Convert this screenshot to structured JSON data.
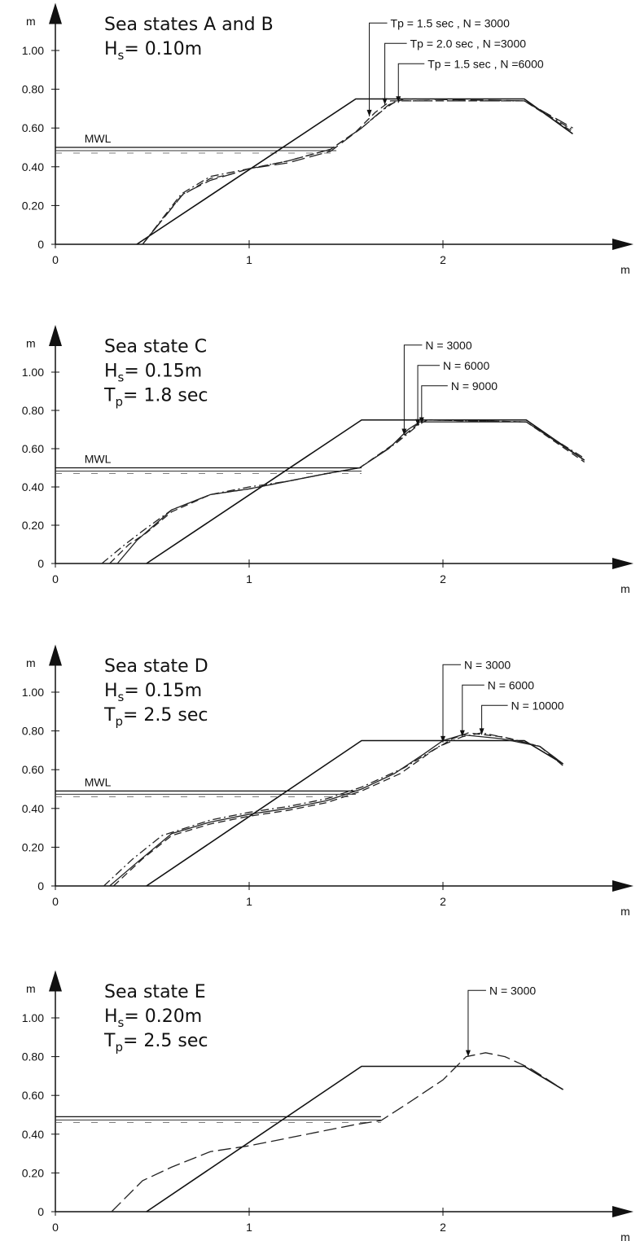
{
  "chart_data": [
    {
      "type": "line",
      "title": [
        "Sea states A and B",
        "H|s|= 0.10m"
      ],
      "xlabel": "m",
      "ylabel": "m",
      "xlim": [
        0,
        2.9
      ],
      "ylim": [
        0,
        1.08
      ],
      "xticks": [
        "0",
        "1",
        "2"
      ],
      "yticks": [
        "0",
        "0.20",
        "0.40",
        "0.60",
        "0.80",
        "1.00"
      ],
      "mwl_label": "MWL",
      "mwl": {
        "y": 0.5,
        "x_end": 1.45
      },
      "original_profile": [
        [
          0.42,
          0
        ],
        [
          1.55,
          0.75
        ],
        [
          2.42,
          0.75
        ],
        [
          2.67,
          0.57
        ]
      ],
      "series": [
        {
          "name": "Tp = 1.5 sec , N = 3000",
          "style": "dashed",
          "points": [
            [
              0.45,
              0
            ],
            [
              0.65,
              0.25
            ],
            [
              0.8,
              0.34
            ],
            [
              0.9,
              0.36
            ],
            [
              1.0,
              0.39
            ],
            [
              1.2,
              0.43
            ],
            [
              1.42,
              0.49
            ],
            [
              1.55,
              0.58
            ],
            [
              1.65,
              0.68
            ],
            [
              1.73,
              0.74
            ],
            [
              2.42,
              0.74
            ],
            [
              2.67,
              0.58
            ]
          ]
        },
        {
          "name": "Tp = 2.0 sec , N =3000",
          "style": "dashdot",
          "points": [
            [
              0.45,
              0
            ],
            [
              0.65,
              0.26
            ],
            [
              0.8,
              0.35
            ],
            [
              0.9,
              0.37
            ],
            [
              1.0,
              0.39
            ],
            [
              1.2,
              0.43
            ],
            [
              1.42,
              0.49
            ],
            [
              1.58,
              0.6
            ],
            [
              1.7,
              0.7
            ],
            [
              1.76,
              0.74
            ],
            [
              2.42,
              0.74
            ],
            [
              2.67,
              0.59
            ]
          ]
        },
        {
          "name": "Tp = 1.5 sec , N =6000",
          "style": "longdash",
          "points": [
            [
              0.45,
              0
            ],
            [
              0.66,
              0.26
            ],
            [
              0.8,
              0.33
            ],
            [
              0.9,
              0.36
            ],
            [
              1.0,
              0.39
            ],
            [
              1.2,
              0.42
            ],
            [
              1.42,
              0.48
            ],
            [
              1.58,
              0.6
            ],
            [
              1.72,
              0.72
            ],
            [
              1.8,
              0.75
            ],
            [
              2.42,
              0.74
            ],
            [
              2.67,
              0.6
            ]
          ]
        }
      ],
      "annotations": [
        {
          "text": "Tp = 1.5 sec , N = 3000",
          "x": 1.62,
          "y": 0.66
        },
        {
          "text": "Tp = 2.0 sec , N =3000",
          "x": 1.7,
          "y": 0.72
        },
        {
          "text": "Tp = 1.5 sec , N =6000",
          "x": 1.77,
          "y": 0.73
        }
      ]
    },
    {
      "type": "line",
      "title": [
        "Sea state C",
        "H|s|= 0.15m",
        "T|p|= 1.8 sec"
      ],
      "xlabel": "m",
      "ylabel": "m",
      "xlim": [
        0,
        2.9
      ],
      "ylim": [
        0,
        1.08
      ],
      "xticks": [
        "0",
        "1",
        "2"
      ],
      "yticks": [
        "0",
        "0.20",
        "0.40",
        "0.60",
        "0.80",
        "1.00"
      ],
      "mwl_label": "MWL",
      "mwl": {
        "y": 0.5,
        "x_end": 1.58
      },
      "original_profile": [
        [
          0.47,
          0
        ],
        [
          1.58,
          0.75
        ],
        [
          2.43,
          0.75
        ],
        [
          2.73,
          0.54
        ]
      ],
      "series": [
        {
          "name": "N = 3000",
          "style": "solid",
          "points": [
            [
              0.32,
              0
            ],
            [
              0.42,
              0.12
            ],
            [
              0.6,
              0.28
            ],
            [
              0.8,
              0.36
            ],
            [
              1.0,
              0.39
            ],
            [
              1.2,
              0.43
            ],
            [
              1.4,
              0.47
            ],
            [
              1.57,
              0.5
            ],
            [
              1.72,
              0.6
            ],
            [
              1.82,
              0.7
            ],
            [
              1.88,
              0.74
            ],
            [
              2.43,
              0.74
            ],
            [
              2.73,
              0.54
            ]
          ]
        },
        {
          "name": "N = 6000",
          "style": "dashed",
          "points": [
            [
              0.28,
              0
            ],
            [
              0.38,
              0.1
            ],
            [
              0.47,
              0.16
            ],
            [
              0.6,
              0.27
            ],
            [
              0.8,
              0.36
            ],
            [
              1.0,
              0.39
            ],
            [
              1.2,
              0.43
            ],
            [
              1.4,
              0.47
            ],
            [
              1.57,
              0.5
            ],
            [
              1.74,
              0.62
            ],
            [
              1.86,
              0.72
            ],
            [
              1.9,
              0.75
            ],
            [
              2.43,
              0.74
            ],
            [
              2.73,
              0.53
            ]
          ]
        },
        {
          "name": "N = 9000",
          "style": "dashdot",
          "points": [
            [
              0.24,
              0
            ],
            [
              0.36,
              0.1
            ],
            [
              0.45,
              0.17
            ],
            [
              0.6,
              0.28
            ],
            [
              0.8,
              0.36
            ],
            [
              1.0,
              0.4
            ],
            [
              1.2,
              0.43
            ],
            [
              1.4,
              0.47
            ],
            [
              1.57,
              0.5
            ],
            [
              1.76,
              0.63
            ],
            [
              1.88,
              0.73
            ],
            [
              1.92,
              0.75
            ],
            [
              2.43,
              0.74
            ],
            [
              2.73,
              0.55
            ]
          ]
        }
      ],
      "annotations": [
        {
          "text": "N = 3000",
          "x": 1.8,
          "y": 0.67
        },
        {
          "text": "N = 6000",
          "x": 1.87,
          "y": 0.72
        },
        {
          "text": "N = 9000",
          "x": 1.89,
          "y": 0.73
        }
      ]
    },
    {
      "type": "line",
      "title": [
        "Sea state D",
        "H|s|= 0.15m",
        "T|p|= 2.5 sec"
      ],
      "xlabel": "m",
      "ylabel": "m",
      "xlim": [
        0,
        2.9
      ],
      "ylim": [
        0,
        1.08
      ],
      "xticks": [
        "0",
        "1",
        "2"
      ],
      "yticks": [
        "0",
        "0.20",
        "0.40",
        "0.60",
        "0.80",
        "1.00"
      ],
      "mwl_label": "MWL",
      "mwl": {
        "y": 0.49,
        "x_end": 1.55
      },
      "original_profile": [
        [
          0.47,
          0
        ],
        [
          1.58,
          0.75
        ],
        [
          2.42,
          0.75
        ],
        [
          2.62,
          0.63
        ]
      ],
      "series": [
        {
          "name": "N = 3000",
          "style": "solid",
          "points": [
            [
              0.28,
              0
            ],
            [
              0.42,
              0.12
            ],
            [
              0.6,
              0.27
            ],
            [
              0.8,
              0.33
            ],
            [
              1.0,
              0.37
            ],
            [
              1.2,
              0.4
            ],
            [
              1.4,
              0.44
            ],
            [
              1.58,
              0.5
            ],
            [
              1.75,
              0.58
            ],
            [
              1.9,
              0.68
            ],
            [
              2.0,
              0.75
            ],
            [
              2.1,
              0.78
            ],
            [
              2.3,
              0.76
            ],
            [
              2.5,
              0.72
            ],
            [
              2.62,
              0.63
            ]
          ]
        },
        {
          "name": "N = 6000",
          "style": "dashed",
          "points": [
            [
              0.3,
              0
            ],
            [
              0.45,
              0.14
            ],
            [
              0.6,
              0.26
            ],
            [
              0.8,
              0.32
            ],
            [
              1.0,
              0.36
            ],
            [
              1.2,
              0.39
            ],
            [
              1.4,
              0.43
            ],
            [
              1.58,
              0.49
            ],
            [
              1.78,
              0.58
            ],
            [
              1.95,
              0.7
            ],
            [
              2.05,
              0.76
            ],
            [
              2.13,
              0.79
            ],
            [
              2.3,
              0.77
            ],
            [
              2.5,
              0.72
            ],
            [
              2.62,
              0.62
            ]
          ]
        },
        {
          "name": "N = 10000",
          "style": "dashdot",
          "points": [
            [
              0.25,
              0
            ],
            [
              0.4,
              0.14
            ],
            [
              0.55,
              0.26
            ],
            [
              0.8,
              0.34
            ],
            [
              1.0,
              0.38
            ],
            [
              1.2,
              0.41
            ],
            [
              1.4,
              0.45
            ],
            [
              1.58,
              0.51
            ],
            [
              1.8,
              0.61
            ],
            [
              1.98,
              0.72
            ],
            [
              2.1,
              0.77
            ],
            [
              2.2,
              0.79
            ],
            [
              2.35,
              0.76
            ],
            [
              2.5,
              0.72
            ],
            [
              2.62,
              0.63
            ]
          ]
        }
      ],
      "annotations": [
        {
          "text": "N =  3000",
          "x": 2.0,
          "y": 0.74
        },
        {
          "text": "N =  6000",
          "x": 2.1,
          "y": 0.77
        },
        {
          "text": "N = 10000",
          "x": 2.2,
          "y": 0.78
        }
      ]
    },
    {
      "type": "line",
      "title": [
        "Sea state E",
        "H|s|= 0.20m",
        "T|p|= 2.5 sec"
      ],
      "xlabel": "m",
      "ylabel": "m",
      "xlim": [
        0,
        2.9
      ],
      "ylim": [
        0,
        1.08
      ],
      "xticks": [
        "0",
        "1",
        "2"
      ],
      "yticks": [
        "0",
        "0.20",
        "0.40",
        "0.60",
        "0.80",
        "1.00"
      ],
      "mwl_label": "",
      "mwl": {
        "y": 0.49,
        "x_end": 1.68
      },
      "original_profile": [
        [
          0.47,
          0
        ],
        [
          1.58,
          0.75
        ],
        [
          2.42,
          0.75
        ],
        [
          2.62,
          0.63
        ]
      ],
      "series": [
        {
          "name": "N = 3000",
          "style": "longdash",
          "points": [
            [
              0.29,
              0
            ],
            [
              0.34,
              0.05
            ],
            [
              0.45,
              0.16
            ],
            [
              0.6,
              0.23
            ],
            [
              0.8,
              0.31
            ],
            [
              1.0,
              0.34
            ],
            [
              1.2,
              0.38
            ],
            [
              1.4,
              0.42
            ],
            [
              1.55,
              0.45
            ],
            [
              1.68,
              0.47
            ],
            [
              1.82,
              0.56
            ],
            [
              2.0,
              0.68
            ],
            [
              2.12,
              0.8
            ],
            [
              2.22,
              0.82
            ],
            [
              2.32,
              0.8
            ],
            [
              2.45,
              0.74
            ],
            [
              2.62,
              0.63
            ]
          ]
        }
      ],
      "annotations": [
        {
          "text": "N = 3000",
          "x": 2.13,
          "y": 0.8
        }
      ]
    }
  ]
}
